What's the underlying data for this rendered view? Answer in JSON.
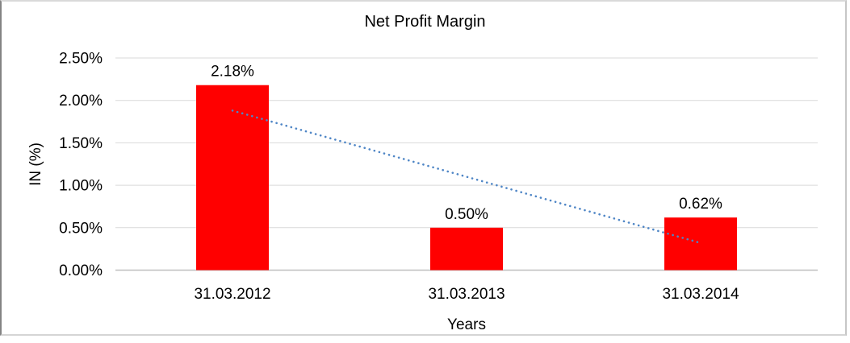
{
  "chart_data": {
    "type": "bar",
    "title": "Net Profit Margin",
    "xlabel": "Years",
    "ylabel": "IN (%)",
    "categories": [
      "31.03.2012",
      "31.03.2013",
      "31.03.2014"
    ],
    "values": [
      2.18,
      0.5,
      0.62
    ],
    "data_labels": [
      "2.18%",
      "0.50%",
      "0.62%"
    ],
    "ytick_labels": [
      "0.00%",
      "0.50%",
      "1.00%",
      "1.50%",
      "2.00%",
      "2.50%"
    ],
    "ylim": [
      0,
      2.5
    ],
    "grid": "horizontal",
    "legend": "none",
    "trendline": {
      "type": "linear",
      "style": "dotted",
      "start_value": 1.88,
      "end_value": 0.32,
      "color": "#4f86c6"
    },
    "colors": {
      "bar": "#ff0000",
      "gridline": "#d9d9d9",
      "axis_line": "#bfbfbf",
      "text": "#000000",
      "background": "#ffffff"
    }
  }
}
